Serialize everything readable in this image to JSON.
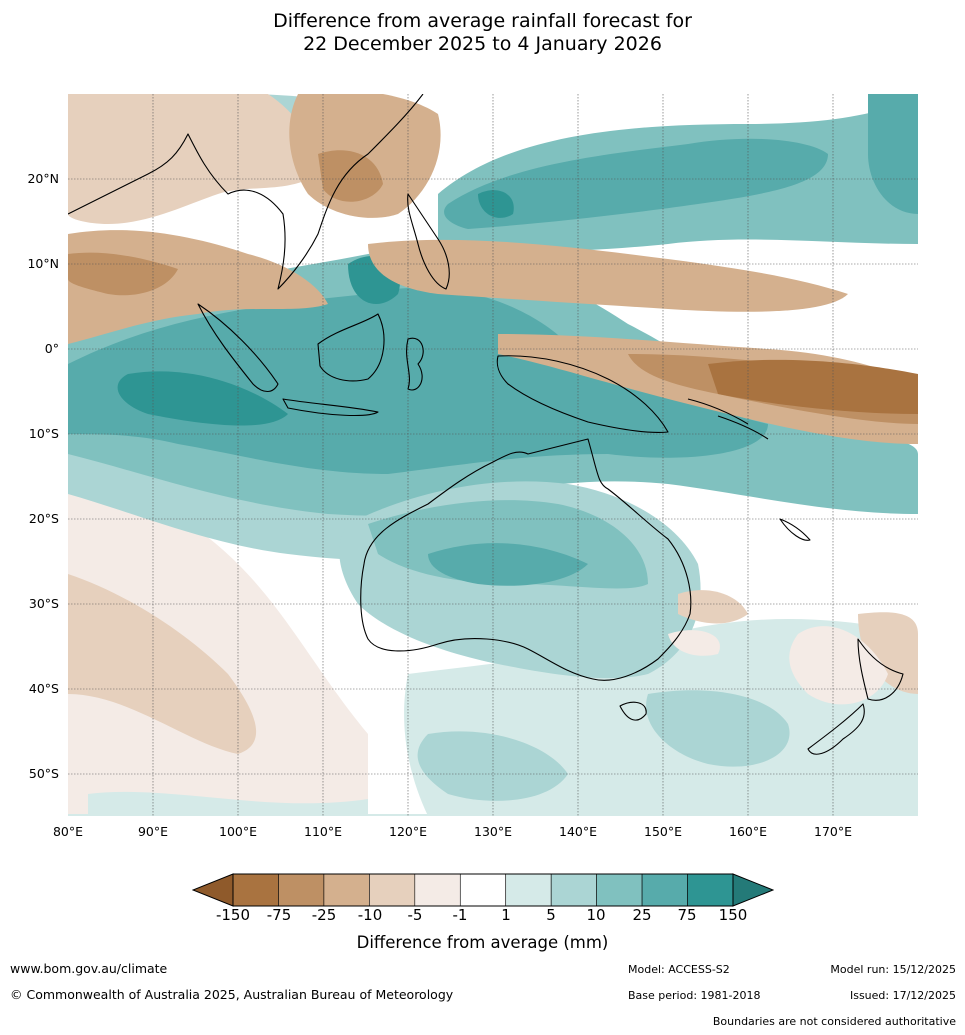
{
  "title_line1": "Difference from average rainfall forecast for",
  "title_line2": "22 December 2025 to 4 January 2026",
  "map": {
    "lon_range": [
      80,
      180
    ],
    "lat_range": [
      -55,
      30
    ],
    "lat_ticks": [
      "20°N",
      "10°N",
      "0°",
      "10°S",
      "20°S",
      "30°S",
      "40°S",
      "50°S"
    ],
    "lon_ticks": [
      "80°E",
      "90°E",
      "100°E",
      "110°E",
      "120°E",
      "130°E",
      "140°E",
      "150°E",
      "160°E",
      "170°E"
    ]
  },
  "colorbar": {
    "ticks": [
      "-150",
      "-75",
      "-25",
      "-10",
      "-5",
      "-1",
      "1",
      "5",
      "10",
      "25",
      "75",
      "150"
    ],
    "colors": [
      "#a97340",
      "#be9064",
      "#d4b08e",
      "#e6d0bd",
      "#f4ebe6",
      "#ffffff",
      "#d5eae8",
      "#abd5d4",
      "#80c1bf",
      "#57abab",
      "#2e9593"
    ],
    "extend_low_color": "#8f5a2b",
    "extend_high_color": "#247a78",
    "label": "Difference from average (mm)"
  },
  "footer": {
    "website": "www.bom.gov.au/climate",
    "copyright": "© Commonwealth of Australia 2025, Australian Bureau of Meteorology",
    "model": "Model: ACCESS-S2",
    "base_period": "Base period: 1981-2018",
    "model_run": "Model run: 15/12/2025",
    "issued": "Issued: 17/12/2025",
    "boundaries_note": "Boundaries are not considered authoritative"
  }
}
